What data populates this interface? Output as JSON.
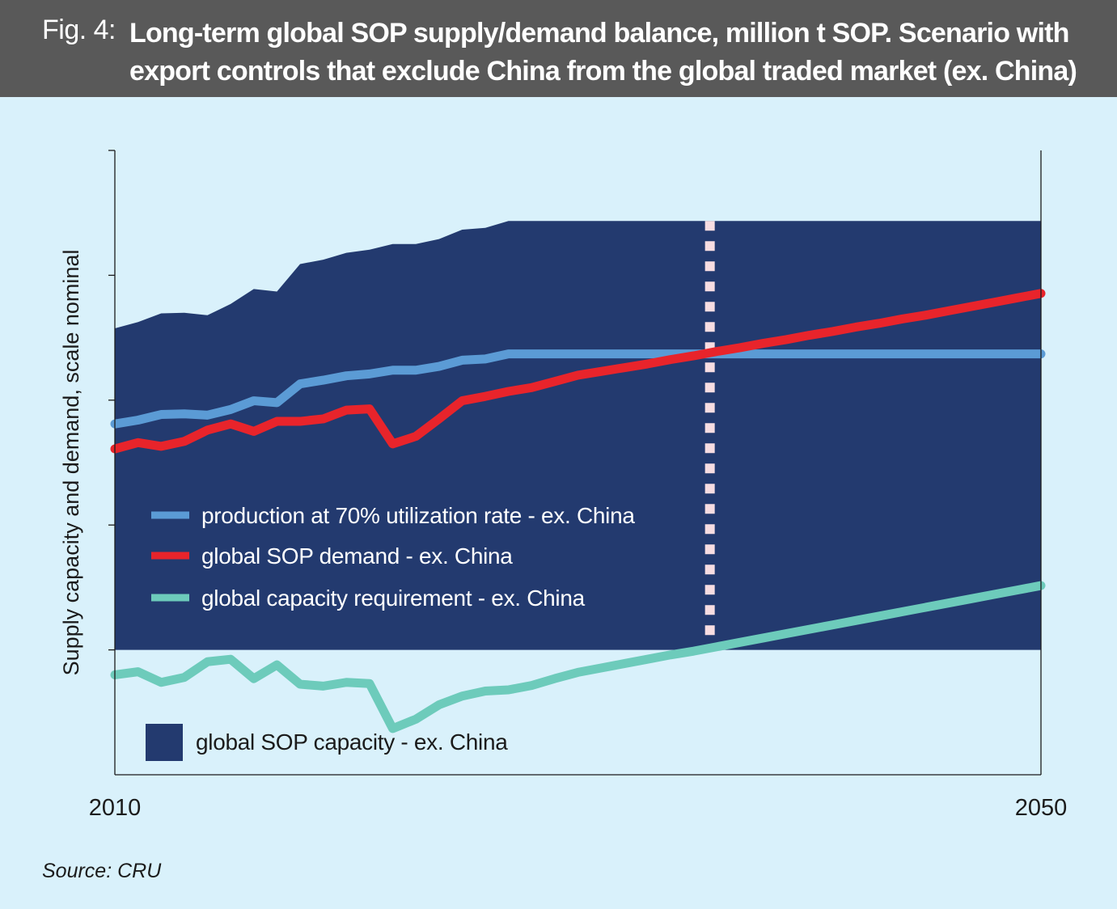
{
  "figure": {
    "label": "Fig. 4:",
    "title": "Long-term global SOP supply/demand balance, million t SOP. Scenario with export controls that exclude China from the global traded market (ex. China)",
    "source": "Source: CRU"
  },
  "colors": {
    "header_bg": "#595959",
    "page_bg": "#d9f1fb",
    "capacity_fill": "#233a6f",
    "production_line": "#5b9bd5",
    "demand_line": "#e8242b",
    "requirement_line": "#6dcbbb",
    "marker_line": "#f7dde2"
  },
  "chart_data": {
    "type": "area",
    "title": "Long-term global SOP supply/demand balance, million t SOP. Scenario with export controls that exclude China from the global traded market (ex. China)",
    "ylabel": "Supply capacity and demand, scale nominal",
    "xlabel": "",
    "x_tick_labels": [
      "2010",
      "2050"
    ],
    "xlim": [
      2010,
      2050
    ],
    "ylim": [
      0,
      100
    ],
    "y_tick_values": [
      20,
      40,
      60,
      80,
      100
    ],
    "y_tick_labels_shown": false,
    "grid": false,
    "x": [
      2010,
      2011,
      2012,
      2013,
      2014,
      2015,
      2016,
      2017,
      2018,
      2019,
      2020,
      2021,
      2022,
      2023,
      2024,
      2025,
      2026,
      2027,
      2028,
      2029,
      2030,
      2031,
      2032,
      2033,
      2034,
      2035,
      2036,
      2037,
      2038,
      2039,
      2040,
      2041,
      2042,
      2043,
      2044,
      2045,
      2046,
      2047,
      2048,
      2049,
      2050
    ],
    "scenario_marker_x": 2035.7,
    "series": [
      {
        "name": "global SOP capacity - ex. China",
        "kind": "area",
        "baseline": 20,
        "values": [
          71.5,
          72.5,
          73.9,
          74.0,
          73.6,
          75.4,
          77.8,
          77.4,
          81.8,
          82.5,
          83.6,
          84.1,
          85.0,
          85.0,
          85.8,
          87.3,
          87.6,
          88.7,
          88.7,
          88.7,
          88.7,
          88.7,
          88.7,
          88.7,
          88.7,
          88.7,
          88.7,
          88.7,
          88.7,
          88.7,
          88.7,
          88.7,
          88.7,
          88.7,
          88.7,
          88.7,
          88.7,
          88.7,
          88.7,
          88.7,
          88.7
        ]
      },
      {
        "name": "production at 70% utilization rate - ex. China",
        "kind": "line",
        "values": [
          56.2,
          56.8,
          57.7,
          57.8,
          57.6,
          58.5,
          59.9,
          59.6,
          62.6,
          63.2,
          63.9,
          64.2,
          64.8,
          64.8,
          65.4,
          66.4,
          66.6,
          67.4,
          67.4,
          67.4,
          67.4,
          67.4,
          67.4,
          67.4,
          67.4,
          67.4,
          67.4,
          67.4,
          67.4,
          67.4,
          67.4,
          67.4,
          67.4,
          67.4,
          67.4,
          67.4,
          67.4,
          67.4,
          67.4,
          67.4,
          67.4
        ]
      },
      {
        "name": "global SOP demand - ex. China",
        "kind": "line",
        "values": [
          52.2,
          53.2,
          52.6,
          53.4,
          55.2,
          56.2,
          55.0,
          56.6,
          56.6,
          57.0,
          58.4,
          58.6,
          53.0,
          54.2,
          57.0,
          59.9,
          60.6,
          61.4,
          62.0,
          63.0,
          64.0,
          64.6,
          65.2,
          65.8,
          66.5,
          67.1,
          67.8,
          68.4,
          69.1,
          69.7,
          70.4,
          71.0,
          71.7,
          72.3,
          73.0,
          73.6,
          74.3,
          75.0,
          75.7,
          76.4,
          77.1
        ]
      },
      {
        "name": "global capacity requirement - ex. China",
        "kind": "line",
        "values": [
          16.0,
          16.5,
          14.8,
          15.6,
          18.1,
          18.5,
          15.4,
          17.6,
          14.5,
          14.2,
          14.8,
          14.6,
          7.4,
          8.9,
          11.2,
          12.6,
          13.4,
          13.6,
          14.3,
          15.4,
          16.4,
          17.1,
          17.8,
          18.5,
          19.2,
          19.8,
          20.5,
          21.2,
          21.9,
          22.6,
          23.3,
          24.0,
          24.7,
          25.4,
          26.1,
          26.8,
          27.5,
          28.2,
          28.9,
          29.6,
          30.3
        ]
      }
    ],
    "legend": {
      "placement": "inside-left",
      "entries": [
        "production at 70% utilization rate - ex. China",
        "global SOP demand - ex. China",
        "global capacity requirement - ex. China",
        "global SOP capacity - ex. China"
      ]
    }
  }
}
